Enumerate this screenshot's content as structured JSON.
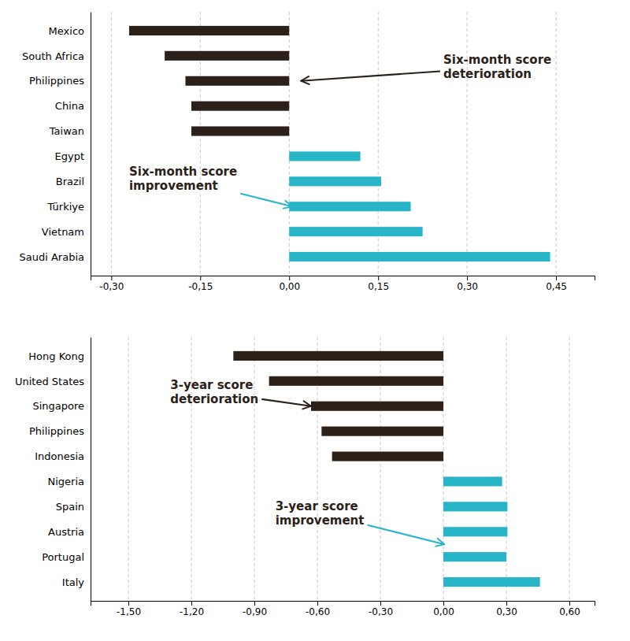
{
  "chart_data": [
    {
      "type": "bar",
      "orientation": "horizontal",
      "grid": true,
      "categories": [
        "Mexico",
        "South Africa",
        "Philippines",
        "China",
        "Taiwan",
        "Egypt",
        "Brazil",
        "Türkiye",
        "Vietnam",
        "Saudi Arabia"
      ],
      "values": [
        -0.27,
        -0.21,
        -0.175,
        -0.165,
        -0.165,
        0.12,
        0.155,
        0.205,
        0.225,
        0.44
      ],
      "colors": [
        "#2b2118",
        "#2b2118",
        "#2b2118",
        "#2b2118",
        "#2b2118",
        "#29b5c8",
        "#29b5c8",
        "#29b5c8",
        "#29b5c8",
        "#29b5c8"
      ],
      "xlim": [
        -0.335,
        0.515
      ],
      "xticks": [
        {
          "value": -0.3,
          "label": "-0,30"
        },
        {
          "value": -0.15,
          "label": "-0,15"
        },
        {
          "value": 0.0,
          "label": "0,00"
        },
        {
          "value": 0.15,
          "label": "0,15"
        },
        {
          "value": 0.3,
          "label": "0,30"
        },
        {
          "value": 0.45,
          "label": "0,45"
        }
      ],
      "annotations": [
        {
          "text": "Six-month score\ndeterioration",
          "xy": [
            0.02,
            7.0
          ],
          "xytext": [
            0.26,
            7.55
          ],
          "color": "#2b2118",
          "arrow_color": "#2b2118"
        },
        {
          "text": "Six-month score\nimprovement",
          "xy": [
            0.005,
            2.0
          ],
          "xytext": [
            -0.27,
            3.1
          ],
          "color": "#2b2118",
          "arrow_color": "#29b5c8"
        }
      ]
    },
    {
      "type": "bar",
      "orientation": "horizontal",
      "grid": true,
      "categories": [
        "Hong Kong",
        "United States",
        "Singapore",
        "Philippines",
        "Indonesia",
        "Nigeria",
        "Spain",
        "Austria",
        "Portugal",
        "Italy"
      ],
      "values": [
        -1.0,
        -0.83,
        -0.63,
        -0.58,
        -0.53,
        0.28,
        0.305,
        0.305,
        0.3,
        0.46
      ],
      "colors": [
        "#2b2118",
        "#2b2118",
        "#2b2118",
        "#2b2118",
        "#2b2118",
        "#29b5c8",
        "#29b5c8",
        "#29b5c8",
        "#29b5c8",
        "#29b5c8"
      ],
      "xlim": [
        -1.68,
        0.72
      ],
      "xticks": [
        {
          "value": -1.5,
          "label": "-1,50"
        },
        {
          "value": -1.2,
          "label": "-1,20"
        },
        {
          "value": -0.9,
          "label": "-0,90"
        },
        {
          "value": -0.6,
          "label": "-0,60"
        },
        {
          "value": -0.3,
          "label": "-0,30"
        },
        {
          "value": 0.0,
          "label": "0,00"
        },
        {
          "value": 0.3,
          "label": "0,30"
        },
        {
          "value": 0.6,
          "label": "0,60"
        }
      ],
      "annotations": [
        {
          "text": "3-year score\ndeterioration",
          "xy": [
            -0.63,
            7.0
          ],
          "xytext": [
            -1.3,
            7.55
          ],
          "color": "#2b2118",
          "arrow_color": "#2b2118"
        },
        {
          "text": "3-year score\nimprovement",
          "xy": [
            0.005,
            1.5
          ],
          "xytext": [
            -0.8,
            2.75
          ],
          "color": "#2b2118",
          "arrow_color": "#29b5c8"
        }
      ]
    }
  ]
}
